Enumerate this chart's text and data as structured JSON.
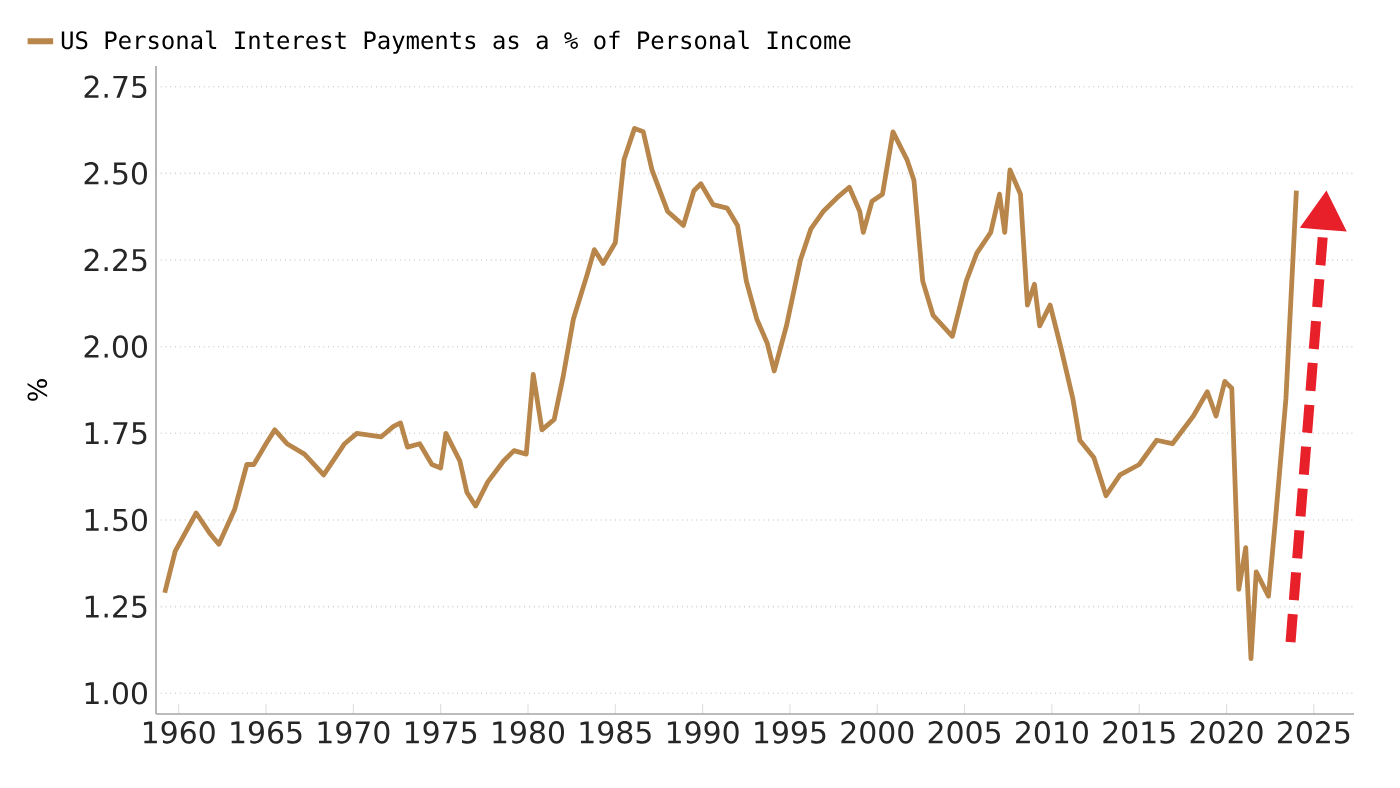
{
  "chart_data": {
    "type": "line",
    "ylabel": "%",
    "legend": "top left",
    "grid": "y",
    "line_style": "solid",
    "marker": "none",
    "xlim": [
      1958.7,
      2027.3
    ],
    "xticks": [
      1960,
      1965,
      1970,
      1975,
      1980,
      1985,
      1990,
      1995,
      2000,
      2005,
      2010,
      2015,
      2020,
      2025
    ],
    "ylim": [
      0.94,
      2.81
    ],
    "yticks": [
      {
        "value": 1.0,
        "label": "1.00"
      },
      {
        "value": 1.25,
        "label": "1.25"
      },
      {
        "value": 1.5,
        "label": "1.50"
      },
      {
        "value": 1.75,
        "label": "1.75"
      },
      {
        "value": 2.0,
        "label": "2.00"
      },
      {
        "value": 2.25,
        "label": "2.25"
      },
      {
        "value": 2.5,
        "label": "2.50"
      },
      {
        "value": 2.75,
        "label": "2.75"
      }
    ],
    "series": [
      {
        "name": "US Personal Interest Payments as a % of Personal Income",
        "color": "#b8864b",
        "x": [
          1959.2,
          1959.8,
          1961.0,
          1961.8,
          1962.3,
          1963.2,
          1963.9,
          1964.3,
          1965.0,
          1965.5,
          1966.2,
          1967.2,
          1968.3,
          1969.5,
          1970.2,
          1971.6,
          1972.3,
          1972.7,
          1973.1,
          1973.8,
          1974.5,
          1975.0,
          1975.3,
          1976.1,
          1976.5,
          1977.0,
          1977.7,
          1978.6,
          1979.2,
          1979.9,
          1980.3,
          1980.8,
          1981.5,
          1982.0,
          1982.6,
          1983.4,
          1983.8,
          1984.3,
          1985.0,
          1985.5,
          1986.1,
          1986.6,
          1987.1,
          1988.0,
          1988.9,
          1989.5,
          1989.9,
          1990.6,
          1991.4,
          1992.0,
          1992.5,
          1993.1,
          1993.7,
          1994.1,
          1994.8,
          1995.6,
          1996.2,
          1996.9,
          1997.7,
          1998.4,
          1999.0,
          1999.2,
          1999.7,
          2000.3,
          2000.9,
          2001.7,
          2002.1,
          2002.6,
          2003.2,
          2004.3,
          2005.1,
          2005.7,
          2006.5,
          2007.0,
          2007.3,
          2007.6,
          2008.2,
          2008.6,
          2009.0,
          2009.3,
          2009.9,
          2010.5,
          2011.2,
          2011.6,
          2012.4,
          2013.1,
          2013.9,
          2015.0,
          2016.0,
          2016.9,
          2018.1,
          2018.9,
          2019.4,
          2019.9,
          2020.3,
          2020.7,
          2021.1,
          2021.4,
          2021.7,
          2022.4,
          2022.8,
          2023.4,
          2024.0
        ],
        "values": [
          1.29,
          1.41,
          1.52,
          1.46,
          1.43,
          1.53,
          1.66,
          1.66,
          1.72,
          1.76,
          1.72,
          1.69,
          1.63,
          1.72,
          1.75,
          1.74,
          1.77,
          1.78,
          1.71,
          1.72,
          1.66,
          1.65,
          1.75,
          1.67,
          1.58,
          1.54,
          1.61,
          1.67,
          1.7,
          1.69,
          1.92,
          1.76,
          1.79,
          1.91,
          2.08,
          2.21,
          2.28,
          2.24,
          2.3,
          2.54,
          2.63,
          2.62,
          2.51,
          2.39,
          2.35,
          2.45,
          2.47,
          2.41,
          2.4,
          2.35,
          2.19,
          2.08,
          2.01,
          1.93,
          2.06,
          2.25,
          2.34,
          2.39,
          2.43,
          2.46,
          2.39,
          2.33,
          2.42,
          2.44,
          2.62,
          2.54,
          2.48,
          2.19,
          2.09,
          2.03,
          2.19,
          2.27,
          2.33,
          2.44,
          2.33,
          2.51,
          2.44,
          2.12,
          2.18,
          2.06,
          2.12,
          2.0,
          1.85,
          1.73,
          1.68,
          1.57,
          1.63,
          1.66,
          1.73,
          1.72,
          1.8,
          1.87,
          1.8,
          1.9,
          1.88,
          1.3,
          1.42,
          1.1,
          1.35,
          1.28,
          1.5,
          1.85,
          2.45
        ]
      }
    ]
  }
}
